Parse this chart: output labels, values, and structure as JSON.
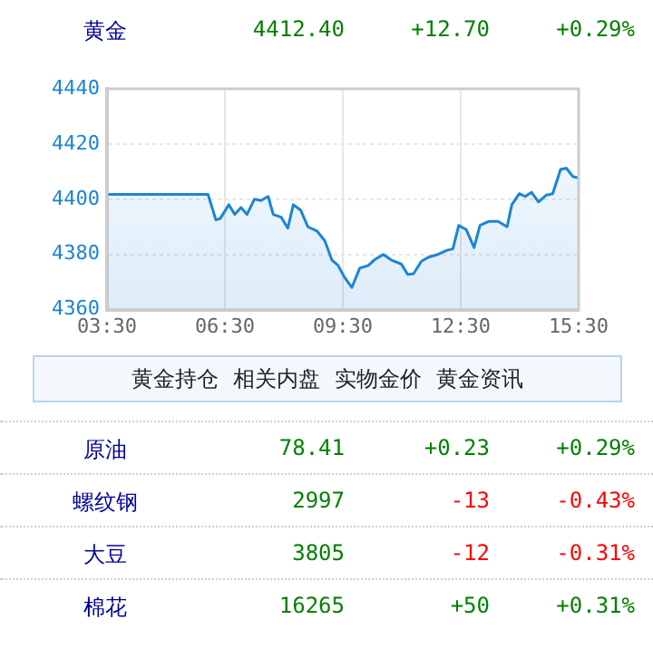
{
  "chart_data": [
    {
      "type": "other",
      "annotations": [
        "黄金",
        "4412.40",
        "+12.70",
        "+0.29%"
      ]
    },
    {
      "type": "area",
      "color": "#1a85d6",
      "x": [
        3.5,
        6.07,
        6.27,
        6.38,
        6.6,
        6.75,
        6.91,
        7.06,
        7.25,
        7.42,
        7.6,
        7.73,
        7.93,
        8.1,
        8.24,
        8.43,
        8.61,
        8.84,
        9.04,
        9.22,
        9.38,
        9.53,
        9.73,
        9.93,
        10.15,
        10.3,
        10.53,
        10.73,
        10.99,
        11.15,
        11.3,
        11.5,
        11.68,
        11.92,
        12.15,
        12.3,
        12.45,
        12.64,
        12.84,
        12.99,
        13.22,
        13.45,
        13.68,
        13.8,
        13.99,
        14.14,
        14.3,
        14.48,
        14.68,
        14.84,
        15.04,
        15.19,
        15.35,
        15.5
      ],
      "values": [
        4401.75,
        4401.75,
        4392.5,
        4393,
        4398,
        4394.5,
        4397,
        4394.5,
        4400,
        4399.5,
        4401,
        4394.5,
        4393.5,
        4389.5,
        4398,
        4396,
        4390,
        4388.5,
        4385,
        4378,
        4376,
        4372,
        4368,
        4375,
        4376,
        4378,
        4380,
        4378,
        4376.5,
        4372.75,
        4373,
        4377.5,
        4379,
        4380,
        4381.5,
        4382,
        4390.5,
        4389,
        4382.5,
        4390.5,
        4392,
        4392,
        4390,
        4398,
        4402,
        4401,
        4402.5,
        4399,
        4401.5,
        4402,
        4410.75,
        4411.25,
        4408.25,
        4407.75
      ],
      "xlim": [
        3.5,
        15.5
      ],
      "xticks": [
        {
          "value": 3.5,
          "label": "03:30"
        },
        {
          "value": 6.5,
          "label": "06:30"
        },
        {
          "value": 9.5,
          "label": "09:30"
        },
        {
          "value": 12.5,
          "label": "12:30"
        },
        {
          "value": 15.5,
          "label": "15:30"
        }
      ],
      "ylim": [
        4360,
        4440
      ],
      "yticks": [
        4360,
        4380,
        4400,
        4420,
        4440
      ],
      "grid": true,
      "legend": false
    },
    {
      "type": "other",
      "annotations": [
        "黄金持仓",
        "相关内盘",
        "实物金价",
        "黄金资讯",
        "原油",
        "78.41",
        "+0.23",
        "+0.29%",
        "螺纹钢",
        "2997",
        "-13",
        "-0.43%",
        "大豆",
        "3805",
        "-12",
        "-0.31%",
        "棉花",
        "16265",
        "+50",
        "+0.31%"
      ]
    }
  ]
}
